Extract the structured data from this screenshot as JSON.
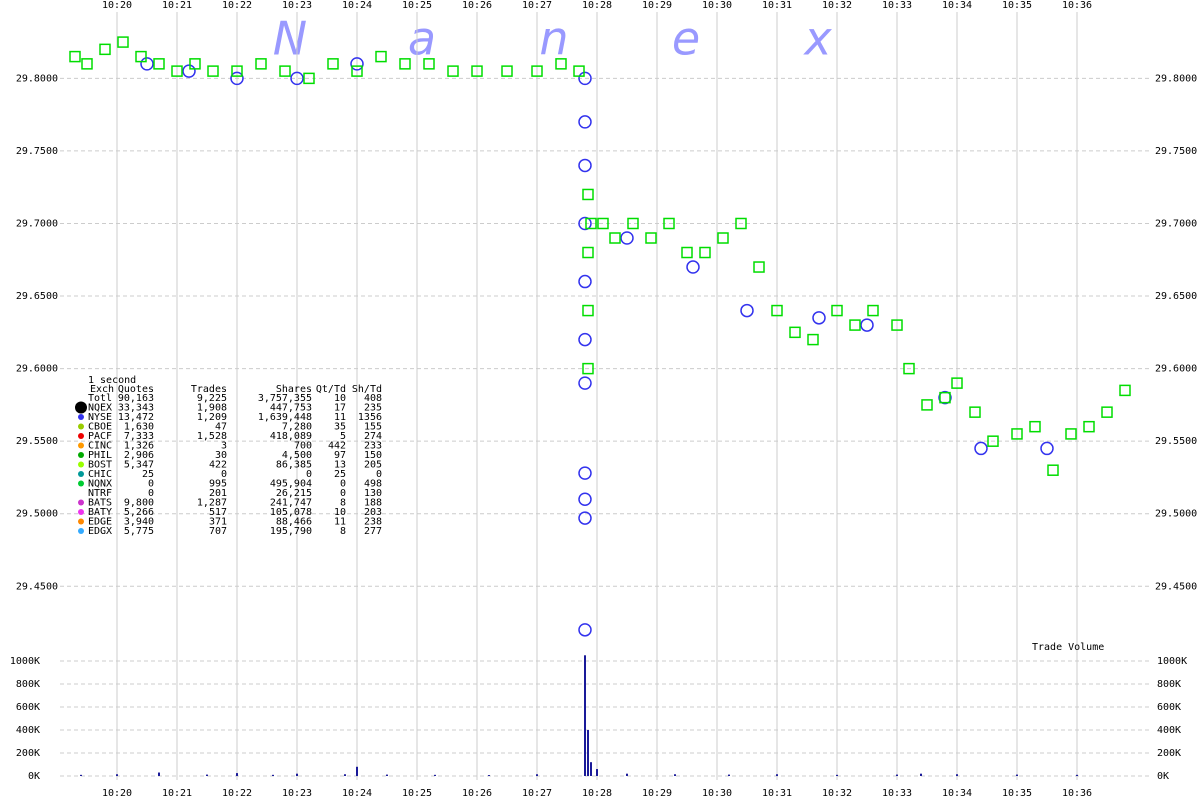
{
  "chart_data": {
    "type": "scatter",
    "watermark": [
      "N",
      "a",
      "n",
      "e",
      "x"
    ],
    "xlim": [
      619.05,
      637.05
    ],
    "xticks": [
      {
        "value": 620,
        "label": "10:20"
      },
      {
        "value": 621,
        "label": "10:21"
      },
      {
        "value": 622,
        "label": "10:22"
      },
      {
        "value": 623,
        "label": "10:23"
      },
      {
        "value": 624,
        "label": "10:24"
      },
      {
        "value": 625,
        "label": "10:25"
      },
      {
        "value": 626,
        "label": "10:26"
      },
      {
        "value": 627,
        "label": "10:27"
      },
      {
        "value": 628,
        "label": "10:28"
      },
      {
        "value": 629,
        "label": "10:29"
      },
      {
        "value": 630,
        "label": "10:30"
      },
      {
        "value": 631,
        "label": "10:31"
      },
      {
        "value": 632,
        "label": "10:32"
      },
      {
        "value": 633,
        "label": "10:33"
      },
      {
        "value": 634,
        "label": "10:34"
      },
      {
        "value": 635,
        "label": "10:35"
      },
      {
        "value": 636,
        "label": "10:36"
      }
    ],
    "ylim": [
      29.413,
      29.854
    ],
    "yticks": [
      {
        "value": 29.8,
        "label": "29.8000"
      },
      {
        "value": 29.75,
        "label": "29.7500"
      },
      {
        "value": 29.7,
        "label": "29.7000"
      },
      {
        "value": 29.65,
        "label": "29.6500"
      },
      {
        "value": 29.6,
        "label": "29.6000"
      },
      {
        "value": 29.55,
        "label": "29.5500"
      },
      {
        "value": 29.5,
        "label": "29.5000"
      },
      {
        "value": 29.45,
        "label": "29.4500"
      }
    ],
    "grid": true,
    "trades": {
      "color": "#00dd00",
      "x": [
        619.3,
        619.5,
        619.8,
        620.1,
        620.4,
        620.7,
        621.0,
        621.3,
        621.6,
        622.0,
        622.4,
        622.8,
        623.2,
        623.6,
        624.0,
        624.4,
        624.8,
        625.2,
        625.6,
        626.0,
        626.5,
        627.0,
        627.4,
        627.7,
        627.85,
        627.85,
        627.85,
        627.85,
        627.9,
        628.1,
        628.3,
        628.6,
        628.9,
        629.2,
        629.5,
        629.8,
        630.1,
        630.4,
        630.7,
        631.0,
        631.3,
        631.6,
        632.0,
        632.3,
        632.6,
        633.0,
        633.2,
        633.5,
        633.8,
        634.0,
        634.3,
        634.6,
        635.0,
        635.3,
        635.6,
        635.9,
        636.2,
        636.5,
        636.8
      ],
      "values": [
        29.815,
        29.81,
        29.82,
        29.825,
        29.815,
        29.81,
        29.805,
        29.81,
        29.805,
        29.805,
        29.81,
        29.805,
        29.8,
        29.81,
        29.805,
        29.815,
        29.81,
        29.81,
        29.805,
        29.805,
        29.805,
        29.805,
        29.81,
        29.805,
        29.72,
        29.68,
        29.64,
        29.6,
        29.7,
        29.7,
        29.69,
        29.7,
        29.69,
        29.7,
        29.68,
        29.68,
        29.69,
        29.7,
        29.67,
        29.64,
        29.625,
        29.62,
        29.64,
        29.63,
        29.64,
        29.63,
        29.6,
        29.575,
        29.58,
        29.59,
        29.57,
        29.55,
        29.555,
        29.56,
        29.53,
        29.555,
        29.56,
        29.57,
        29.585
      ]
    },
    "quotes": {
      "color": "#3333ee",
      "x": [
        620.5,
        621.2,
        622.0,
        623.0,
        624.0,
        627.8,
        627.8,
        627.8,
        627.8,
        627.8,
        627.8,
        627.8,
        627.8,
        627.8,
        627.8,
        627.8,
        628.5,
        629.6,
        630.5,
        631.7,
        632.5,
        633.8,
        634.4,
        635.5
      ],
      "values": [
        29.81,
        29.805,
        29.8,
        29.8,
        29.81,
        29.8,
        29.77,
        29.74,
        29.7,
        29.66,
        29.62,
        29.59,
        29.528,
        29.51,
        29.497,
        29.42,
        29.69,
        29.67,
        29.64,
        29.635,
        29.63,
        29.58,
        29.545,
        29.545
      ]
    },
    "stats": {
      "title": "1 second",
      "header": [
        "Exch",
        "Quotes",
        "Trades",
        "Shares",
        "Qt/Td",
        "Sh/Td"
      ],
      "rows": [
        [
          "Totl",
          "90,163",
          "9,225",
          "3,757,355",
          "10",
          "408"
        ],
        [
          "NQEX",
          "33,343",
          "1,908",
          "447,753",
          "17",
          "235"
        ],
        [
          "NYSE",
          "13,472",
          "1,209",
          "1,639,448",
          "11",
          "1356"
        ],
        [
          "CBOE",
          "1,630",
          "47",
          "7,280",
          "35",
          "155"
        ],
        [
          "PACF",
          "7,333",
          "1,528",
          "418,089",
          "5",
          "274"
        ],
        [
          "CINC",
          "1,326",
          "3",
          "700",
          "442",
          "233"
        ],
        [
          "PHIL",
          "2,906",
          "30",
          "4,500",
          "97",
          "150"
        ],
        [
          "BOST",
          "5,347",
          "422",
          "86,385",
          "13",
          "205"
        ],
        [
          "CHIC",
          "25",
          "0",
          "0",
          "25",
          "0"
        ],
        [
          "NQNX",
          "0",
          "995",
          "495,904",
          "0",
          "498"
        ],
        [
          "NTRF",
          "0",
          "201",
          "26,215",
          "0",
          "130"
        ],
        [
          "BATS",
          "9,800",
          "1,287",
          "241,747",
          "8",
          "188"
        ],
        [
          "BATY",
          "5,266",
          "517",
          "105,078",
          "10",
          "203"
        ],
        [
          "EDGE",
          "3,940",
          "371",
          "88,466",
          "11",
          "238"
        ],
        [
          "EDGX",
          "5,775",
          "707",
          "195,790",
          "8",
          "277"
        ]
      ],
      "row_colors": [
        null,
        "#000000",
        "#3333ee",
        "#99cc00",
        "#ee0000",
        "#ff9900",
        "#00aa00",
        "#99ff00",
        "#009999",
        "#00cc33",
        null,
        "#cc33cc",
        "#ee33ee",
        "#ff8800",
        "#33aaff"
      ]
    },
    "volume": {
      "title": "Trade Volume",
      "color": "#1a1a99",
      "ylim": [
        -35000,
        1096000
      ],
      "yticks": [
        {
          "value": 0,
          "label": "0K"
        },
        {
          "value": 200000,
          "label": "200K"
        },
        {
          "value": 400000,
          "label": "400K"
        },
        {
          "value": 600000,
          "label": "600K"
        },
        {
          "value": 800000,
          "label": "800K"
        },
        {
          "value": 1000000,
          "label": "1000K"
        }
      ],
      "x": [
        619.4,
        620.0,
        620.7,
        621.5,
        622.0,
        622.6,
        623.0,
        623.8,
        624.0,
        624.5,
        625.3,
        626.2,
        627.0,
        627.8,
        627.85,
        627.9,
        628.0,
        628.5,
        629.3,
        630.2,
        631.0,
        632.0,
        633.0,
        633.4,
        634.0,
        635.0,
        636.0
      ],
      "values": [
        10000,
        15000,
        30000,
        12000,
        25000,
        10000,
        20000,
        15000,
        80000,
        12000,
        10000,
        8000,
        15000,
        1050000,
        400000,
        120000,
        60000,
        20000,
        15000,
        12000,
        15000,
        10000,
        12000,
        20000,
        15000,
        12000,
        10000
      ]
    }
  }
}
